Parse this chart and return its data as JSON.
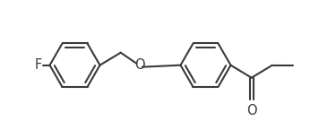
{
  "bg_color": "#ffffff",
  "line_color": "#3a3a3a",
  "line_width": 1.5,
  "text_color": "#3a3a3a",
  "F_label": "F",
  "O_label": "O",
  "font_size": 10.5,
  "figsize": [
    3.75,
    1.45
  ],
  "dpi": 100
}
